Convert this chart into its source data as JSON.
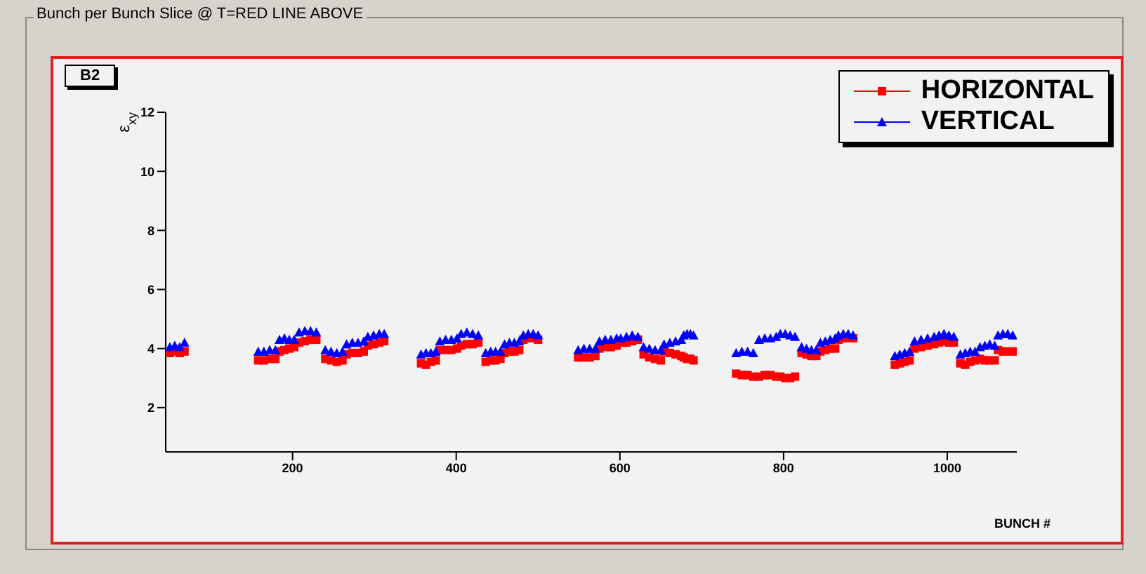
{
  "chart_data": {
    "type": "scatter",
    "title": "Bunch per Bunch Slice @ T=RED LINE ABOVE",
    "subtitle": "B2",
    "xlabel": "BUNCH #",
    "ylabel": "ε$_{xy}$",
    "x": [
      50,
      56,
      62,
      68,
      158,
      165,
      172,
      179,
      184,
      190,
      196,
      202,
      208,
      215,
      222,
      229,
      240,
      247,
      254,
      261,
      266,
      273,
      280,
      287,
      292,
      299,
      306,
      312,
      357,
      363,
      369,
      375,
      380,
      387,
      394,
      401,
      406,
      413,
      420,
      427,
      436,
      442,
      448,
      454,
      459,
      465,
      471,
      477,
      482,
      488,
      494,
      500,
      549,
      556,
      563,
      570,
      575,
      582,
      589,
      596,
      601,
      608,
      615,
      622,
      629,
      636,
      643,
      650,
      654,
      661,
      668,
      675,
      678,
      682,
      686,
      690,
      742,
      749,
      756,
      763,
      770,
      777,
      784,
      791,
      796,
      802,
      808,
      814,
      822,
      828,
      834,
      840,
      845,
      851,
      857,
      863,
      867,
      873,
      879,
      885,
      936,
      942,
      948,
      954,
      960,
      968,
      976,
      984,
      990,
      996,
      1002,
      1008,
      1016,
      1022,
      1028,
      1034,
      1040,
      1046,
      1052,
      1058,
      1062,
      1068,
      1074,
      1080
    ],
    "series": [
      {
        "name": "HORIZONTAL",
        "color": "#ff0000",
        "marker": "square",
        "values": [
          3.85,
          3.9,
          3.85,
          3.9,
          3.6,
          3.6,
          3.65,
          3.65,
          3.9,
          3.95,
          4.0,
          4.05,
          4.2,
          4.25,
          4.3,
          4.3,
          3.65,
          3.6,
          3.55,
          3.6,
          3.8,
          3.85,
          3.85,
          3.9,
          4.1,
          4.15,
          4.2,
          4.25,
          3.5,
          3.45,
          3.55,
          3.6,
          3.95,
          3.95,
          3.95,
          4.0,
          4.1,
          4.15,
          4.15,
          4.2,
          3.55,
          3.6,
          3.6,
          3.65,
          3.85,
          3.9,
          3.9,
          3.95,
          4.3,
          4.35,
          4.35,
          4.3,
          3.7,
          3.7,
          3.7,
          3.75,
          4.0,
          4.05,
          4.05,
          4.1,
          4.2,
          4.2,
          4.25,
          4.3,
          3.8,
          3.7,
          3.65,
          3.6,
          3.9,
          3.85,
          3.8,
          3.75,
          3.7,
          3.65,
          3.65,
          3.6,
          3.15,
          3.1,
          3.1,
          3.05,
          3.05,
          3.1,
          3.1,
          3.05,
          3.05,
          3.0,
          3.0,
          3.05,
          3.85,
          3.8,
          3.75,
          3.75,
          3.9,
          3.95,
          4.0,
          4.0,
          4.3,
          4.35,
          4.35,
          4.35,
          3.45,
          3.5,
          3.55,
          3.6,
          4.0,
          4.05,
          4.1,
          4.15,
          4.2,
          4.25,
          4.2,
          4.2,
          3.5,
          3.45,
          3.55,
          3.6,
          3.65,
          3.6,
          3.6,
          3.6,
          3.95,
          3.9,
          3.9,
          3.9
        ]
      },
      {
        "name": "VERTICAL",
        "color": "#0000ff",
        "marker": "triangle",
        "values": [
          4.05,
          4.1,
          4.05,
          4.2,
          3.9,
          3.9,
          3.95,
          3.95,
          4.3,
          4.35,
          4.3,
          4.3,
          4.55,
          4.6,
          4.6,
          4.55,
          3.95,
          3.9,
          3.85,
          3.9,
          4.15,
          4.2,
          4.2,
          4.25,
          4.4,
          4.45,
          4.5,
          4.5,
          3.8,
          3.85,
          3.85,
          3.9,
          4.25,
          4.3,
          4.3,
          4.35,
          4.5,
          4.55,
          4.5,
          4.45,
          3.85,
          3.9,
          3.9,
          3.9,
          4.15,
          4.2,
          4.2,
          4.25,
          4.45,
          4.5,
          4.5,
          4.45,
          3.95,
          4.0,
          4.0,
          4.0,
          4.25,
          4.3,
          4.3,
          4.35,
          4.35,
          4.4,
          4.45,
          4.4,
          4.05,
          4.0,
          3.95,
          3.95,
          4.15,
          4.2,
          4.25,
          4.3,
          4.45,
          4.5,
          4.5,
          4.45,
          3.85,
          3.9,
          3.9,
          3.85,
          4.3,
          4.35,
          4.35,
          4.4,
          4.5,
          4.5,
          4.45,
          4.4,
          4.05,
          4.0,
          3.95,
          3.95,
          4.2,
          4.25,
          4.3,
          4.35,
          4.45,
          4.5,
          4.5,
          4.45,
          3.75,
          3.8,
          3.85,
          3.9,
          4.25,
          4.3,
          4.35,
          4.4,
          4.45,
          4.5,
          4.45,
          4.4,
          3.8,
          3.85,
          3.9,
          3.9,
          4.05,
          4.1,
          4.15,
          4.1,
          4.45,
          4.5,
          4.5,
          4.45
        ]
      }
    ],
    "xlim": [
      45,
      1085
    ],
    "xticks": [
      200,
      400,
      600,
      800,
      1000
    ],
    "ylim": [
      0.5,
      12
    ],
    "yticks": [
      2,
      4,
      6,
      8,
      10,
      12
    ],
    "grid": false,
    "legend": "top right"
  }
}
